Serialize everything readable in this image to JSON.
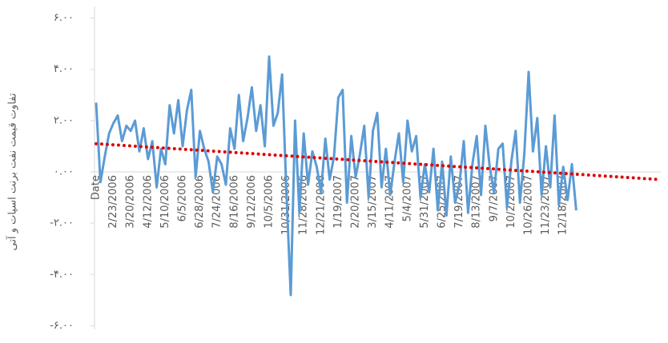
{
  "chart_data": {
    "type": "line",
    "y_axis_label": "تفاوت قیمت نفت برنت اسپات و آتی",
    "categories": [
      "Date",
      null,
      null,
      null,
      "2/23/2006",
      null,
      null,
      null,
      "3/20/2006",
      null,
      null,
      null,
      "4/12/2006",
      null,
      null,
      null,
      "5/10/2006",
      null,
      null,
      null,
      "6/5/2006",
      null,
      null,
      null,
      "6/28/2006",
      null,
      null,
      null,
      "7/24/2006",
      null,
      null,
      null,
      "8/16/2006",
      null,
      null,
      null,
      "9/12/2006",
      null,
      null,
      null,
      "10/5/2006",
      null,
      null,
      null,
      "10/31/2006",
      null,
      null,
      null,
      "11/28/2006",
      null,
      null,
      null,
      "12/21/2006",
      null,
      null,
      null,
      "1/19/2007",
      null,
      null,
      null,
      "2/20/2007",
      null,
      null,
      null,
      "3/15/2007",
      null,
      null,
      null,
      "4/11/2007",
      null,
      null,
      null,
      "5/4/2007",
      null,
      null,
      null,
      "5/31/2007",
      null,
      null,
      null,
      "6/25/2007",
      null,
      null,
      null,
      "7/19/2007",
      null,
      null,
      null,
      "8/13/2007",
      null,
      null,
      null,
      "9/7/2007",
      null,
      null,
      null,
      "10/2/2007",
      null,
      null,
      null,
      "10/26/2007",
      null,
      null,
      null,
      "11/23/2007",
      null,
      null,
      null,
      "12/18/2007",
      null,
      null,
      null
    ],
    "series": [
      {
        "color": "#5b9bd5",
        "values": [
          2.7,
          -0.4,
          0.6,
          1.5,
          1.9,
          2.2,
          1.2,
          1.8,
          1.6,
          2.0,
          0.8,
          1.7,
          0.5,
          1.2,
          -0.6,
          0.9,
          0.3,
          2.6,
          1.5,
          2.8,
          1.0,
          2.4,
          3.2,
          -0.2,
          1.6,
          0.9,
          0.4,
          -0.8,
          0.6,
          0.3,
          -0.5,
          1.7,
          0.9,
          3.0,
          1.2,
          2.1,
          3.3,
          1.6,
          2.6,
          1.0,
          4.5,
          1.8,
          2.3,
          3.8,
          -0.8,
          -4.8,
          2.0,
          -1.6,
          1.5,
          -0.5,
          0.8,
          0.2,
          -0.8,
          1.3,
          -0.3,
          0.6,
          2.9,
          3.2,
          -1.2,
          1.4,
          -0.2,
          0.7,
          1.8,
          -1.0,
          1.6,
          2.3,
          -0.6,
          0.9,
          -0.9,
          0.4,
          1.5,
          -0.4,
          2.0,
          0.8,
          1.4,
          -1.0,
          0.3,
          -0.8,
          0.9,
          -1.5,
          0.4,
          -1.7,
          0.6,
          -1.2,
          -0.5,
          1.2,
          -1.6,
          0.3,
          1.4,
          -0.9,
          1.8,
          0.2,
          -0.8,
          0.9,
          1.1,
          -1.4,
          0.4,
          1.6,
          -1.2,
          0.7,
          3.9,
          0.8,
          2.1,
          -0.9,
          1.0,
          -0.6,
          2.2,
          -1.3,
          0.2,
          -1.1,
          0.3,
          -1.5
        ]
      }
    ],
    "trendline": {
      "color": "#e00000",
      "values": [
        1.1,
        -0.3
      ]
    },
    "ylim": [
      -6.3,
      6.3
    ],
    "yticks": [
      {
        "value": 6,
        "label": "۶.۰۰"
      },
      {
        "value": 4,
        "label": "۴.۰۰"
      },
      {
        "value": 2,
        "label": "۲.۰۰"
      },
      {
        "value": 0,
        "label": "۰.۰۰"
      },
      {
        "value": -2,
        "label": "-۲.۰۰"
      },
      {
        "value": -4,
        "label": "-۴.۰۰"
      },
      {
        "value": -6,
        "label": "-۶.۰۰"
      }
    ]
  }
}
